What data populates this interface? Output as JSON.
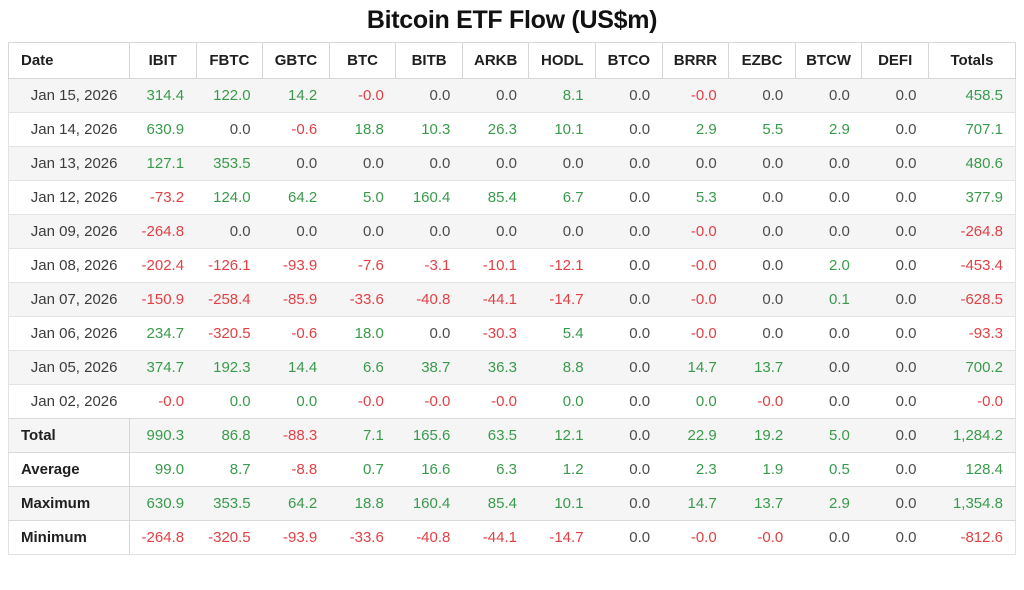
{
  "title": "Bitcoin ETF Flow (US$m)",
  "colors": {
    "positive": "#3a9a4c",
    "negative": "#e24045",
    "neutral": "#4c4c4c",
    "stripe": "#f5f5f6"
  },
  "table": {
    "columns": [
      "Date",
      "IBIT",
      "FBTC",
      "GBTC",
      "BTC",
      "BITB",
      "ARKB",
      "HODL",
      "BTCO",
      "BRRR",
      "EZBC",
      "BTCW",
      "DEFI",
      "Totals"
    ],
    "rows": [
      {
        "label": "Jan 15, 2026",
        "values": [
          "314.4",
          "122.0",
          "14.2",
          "-0.0",
          "0.0",
          "0.0",
          "8.1",
          "0.0",
          "-0.0",
          "0.0",
          "0.0",
          "0.0",
          "458.5"
        ],
        "colors": [
          "g",
          "g",
          "g",
          "r",
          "n",
          "n",
          "g",
          "n",
          "r",
          "n",
          "n",
          "n",
          "g"
        ]
      },
      {
        "label": "Jan 14, 2026",
        "values": [
          "630.9",
          "0.0",
          "-0.6",
          "18.8",
          "10.3",
          "26.3",
          "10.1",
          "0.0",
          "2.9",
          "5.5",
          "2.9",
          "0.0",
          "707.1"
        ],
        "colors": [
          "g",
          "n",
          "r",
          "g",
          "g",
          "g",
          "g",
          "n",
          "g",
          "g",
          "g",
          "n",
          "g"
        ]
      },
      {
        "label": "Jan 13, 2026",
        "values": [
          "127.1",
          "353.5",
          "0.0",
          "0.0",
          "0.0",
          "0.0",
          "0.0",
          "0.0",
          "0.0",
          "0.0",
          "0.0",
          "0.0",
          "480.6"
        ],
        "colors": [
          "g",
          "g",
          "n",
          "n",
          "n",
          "n",
          "n",
          "n",
          "n",
          "n",
          "n",
          "n",
          "g"
        ]
      },
      {
        "label": "Jan 12, 2026",
        "values": [
          "-73.2",
          "124.0",
          "64.2",
          "5.0",
          "160.4",
          "85.4",
          "6.7",
          "0.0",
          "5.3",
          "0.0",
          "0.0",
          "0.0",
          "377.9"
        ],
        "colors": [
          "r",
          "g",
          "g",
          "g",
          "g",
          "g",
          "g",
          "n",
          "g",
          "n",
          "n",
          "n",
          "g"
        ]
      },
      {
        "label": "Jan 09, 2026",
        "values": [
          "-264.8",
          "0.0",
          "0.0",
          "0.0",
          "0.0",
          "0.0",
          "0.0",
          "0.0",
          "-0.0",
          "0.0",
          "0.0",
          "0.0",
          "-264.8"
        ],
        "colors": [
          "r",
          "n",
          "n",
          "n",
          "n",
          "n",
          "n",
          "n",
          "r",
          "n",
          "n",
          "n",
          "r"
        ]
      },
      {
        "label": "Jan 08, 2026",
        "values": [
          "-202.4",
          "-126.1",
          "-93.9",
          "-7.6",
          "-3.1",
          "-10.1",
          "-12.1",
          "0.0",
          "-0.0",
          "0.0",
          "2.0",
          "0.0",
          "-453.4"
        ],
        "colors": [
          "r",
          "r",
          "r",
          "r",
          "r",
          "r",
          "r",
          "n",
          "r",
          "n",
          "g",
          "n",
          "r"
        ]
      },
      {
        "label": "Jan 07, 2026",
        "values": [
          "-150.9",
          "-258.4",
          "-85.9",
          "-33.6",
          "-40.8",
          "-44.1",
          "-14.7",
          "0.0",
          "-0.0",
          "0.0",
          "0.1",
          "0.0",
          "-628.5"
        ],
        "colors": [
          "r",
          "r",
          "r",
          "r",
          "r",
          "r",
          "r",
          "n",
          "r",
          "n",
          "g",
          "n",
          "r"
        ]
      },
      {
        "label": "Jan 06, 2026",
        "values": [
          "234.7",
          "-320.5",
          "-0.6",
          "18.0",
          "0.0",
          "-30.3",
          "5.4",
          "0.0",
          "-0.0",
          "0.0",
          "0.0",
          "0.0",
          "-93.3"
        ],
        "colors": [
          "g",
          "r",
          "r",
          "g",
          "n",
          "r",
          "g",
          "n",
          "r",
          "n",
          "n",
          "n",
          "r"
        ]
      },
      {
        "label": "Jan 05, 2026",
        "values": [
          "374.7",
          "192.3",
          "14.4",
          "6.6",
          "38.7",
          "36.3",
          "8.8",
          "0.0",
          "14.7",
          "13.7",
          "0.0",
          "0.0",
          "700.2"
        ],
        "colors": [
          "g",
          "g",
          "g",
          "g",
          "g",
          "g",
          "g",
          "n",
          "g",
          "g",
          "n",
          "n",
          "g"
        ]
      },
      {
        "label": "Jan 02, 2026",
        "values": [
          "-0.0",
          "0.0",
          "0.0",
          "-0.0",
          "-0.0",
          "-0.0",
          "0.0",
          "0.0",
          "0.0",
          "-0.0",
          "0.0",
          "0.0",
          "-0.0"
        ],
        "colors": [
          "r",
          "g",
          "g",
          "r",
          "r",
          "r",
          "g",
          "n",
          "g",
          "r",
          "n",
          "n",
          "r"
        ]
      }
    ],
    "summary_rows": [
      {
        "label": "Total",
        "values": [
          "990.3",
          "86.8",
          "-88.3",
          "7.1",
          "165.6",
          "63.5",
          "12.1",
          "0.0",
          "22.9",
          "19.2",
          "5.0",
          "0.0",
          "1,284.2"
        ],
        "colors": [
          "g",
          "g",
          "r",
          "g",
          "g",
          "g",
          "g",
          "n",
          "g",
          "g",
          "g",
          "n",
          "g"
        ]
      },
      {
        "label": "Average",
        "values": [
          "99.0",
          "8.7",
          "-8.8",
          "0.7",
          "16.6",
          "6.3",
          "1.2",
          "0.0",
          "2.3",
          "1.9",
          "0.5",
          "0.0",
          "128.4"
        ],
        "colors": [
          "g",
          "g",
          "r",
          "g",
          "g",
          "g",
          "g",
          "n",
          "g",
          "g",
          "g",
          "n",
          "g"
        ]
      },
      {
        "label": "Maximum",
        "values": [
          "630.9",
          "353.5",
          "64.2",
          "18.8",
          "160.4",
          "85.4",
          "10.1",
          "0.0",
          "14.7",
          "13.7",
          "2.9",
          "0.0",
          "1,354.8"
        ],
        "colors": [
          "g",
          "g",
          "g",
          "g",
          "g",
          "g",
          "g",
          "n",
          "g",
          "g",
          "g",
          "n",
          "g"
        ]
      },
      {
        "label": "Minimum",
        "values": [
          "-264.8",
          "-320.5",
          "-93.9",
          "-33.6",
          "-40.8",
          "-44.1",
          "-14.7",
          "0.0",
          "-0.0",
          "-0.0",
          "0.0",
          "0.0",
          "-812.6"
        ],
        "colors": [
          "r",
          "r",
          "r",
          "r",
          "r",
          "r",
          "r",
          "n",
          "r",
          "r",
          "n",
          "n",
          "r"
        ]
      }
    ]
  },
  "chart_data": {
    "type": "table",
    "title": "Bitcoin ETF Flow (US$m)",
    "columns": [
      "Date",
      "IBIT",
      "FBTC",
      "GBTC",
      "BTC",
      "BITB",
      "ARKB",
      "HODL",
      "BTCO",
      "BRRR",
      "EZBC",
      "BTCW",
      "DEFI",
      "Totals"
    ],
    "rows": [
      [
        "Jan 15, 2026",
        314.4,
        122.0,
        14.2,
        -0.0,
        0.0,
        0.0,
        8.1,
        0.0,
        -0.0,
        0.0,
        0.0,
        0.0,
        458.5
      ],
      [
        "Jan 14, 2026",
        630.9,
        0.0,
        -0.6,
        18.8,
        10.3,
        26.3,
        10.1,
        0.0,
        2.9,
        5.5,
        2.9,
        0.0,
        707.1
      ],
      [
        "Jan 13, 2026",
        127.1,
        353.5,
        0.0,
        0.0,
        0.0,
        0.0,
        0.0,
        0.0,
        0.0,
        0.0,
        0.0,
        0.0,
        480.6
      ],
      [
        "Jan 12, 2026",
        -73.2,
        124.0,
        64.2,
        5.0,
        160.4,
        85.4,
        6.7,
        0.0,
        5.3,
        0.0,
        0.0,
        0.0,
        377.9
      ],
      [
        "Jan 09, 2026",
        -264.8,
        0.0,
        0.0,
        0.0,
        0.0,
        0.0,
        0.0,
        0.0,
        -0.0,
        0.0,
        0.0,
        0.0,
        -264.8
      ],
      [
        "Jan 08, 2026",
        -202.4,
        -126.1,
        -93.9,
        -7.6,
        -3.1,
        -10.1,
        -12.1,
        0.0,
        -0.0,
        0.0,
        2.0,
        0.0,
        -453.4
      ],
      [
        "Jan 07, 2026",
        -150.9,
        -258.4,
        -85.9,
        -33.6,
        -40.8,
        -44.1,
        -14.7,
        0.0,
        -0.0,
        0.0,
        0.1,
        0.0,
        -628.5
      ],
      [
        "Jan 06, 2026",
        234.7,
        -320.5,
        -0.6,
        18.0,
        0.0,
        -30.3,
        5.4,
        0.0,
        -0.0,
        0.0,
        0.0,
        0.0,
        -93.3
      ],
      [
        "Jan 05, 2026",
        374.7,
        192.3,
        14.4,
        6.6,
        38.7,
        36.3,
        8.8,
        0.0,
        14.7,
        13.7,
        0.0,
        0.0,
        700.2
      ],
      [
        "Jan 02, 2026",
        -0.0,
        0.0,
        0.0,
        -0.0,
        -0.0,
        -0.0,
        0.0,
        0.0,
        0.0,
        -0.0,
        0.0,
        0.0,
        -0.0
      ]
    ],
    "summary": [
      [
        "Total",
        990.3,
        86.8,
        -88.3,
        7.1,
        165.6,
        63.5,
        12.1,
        0.0,
        22.9,
        19.2,
        5.0,
        0.0,
        1284.2
      ],
      [
        "Average",
        99.0,
        8.7,
        -8.8,
        0.7,
        16.6,
        6.3,
        1.2,
        0.0,
        2.3,
        1.9,
        0.5,
        0.0,
        128.4
      ],
      [
        "Maximum",
        630.9,
        353.5,
        64.2,
        18.8,
        160.4,
        85.4,
        10.1,
        0.0,
        14.7,
        13.7,
        2.9,
        0.0,
        1354.8
      ],
      [
        "Minimum",
        -264.8,
        -320.5,
        -93.9,
        -33.6,
        -40.8,
        -44.1,
        -14.7,
        0.0,
        -0.0,
        -0.0,
        0.0,
        0.0,
        -812.6
      ]
    ]
  }
}
